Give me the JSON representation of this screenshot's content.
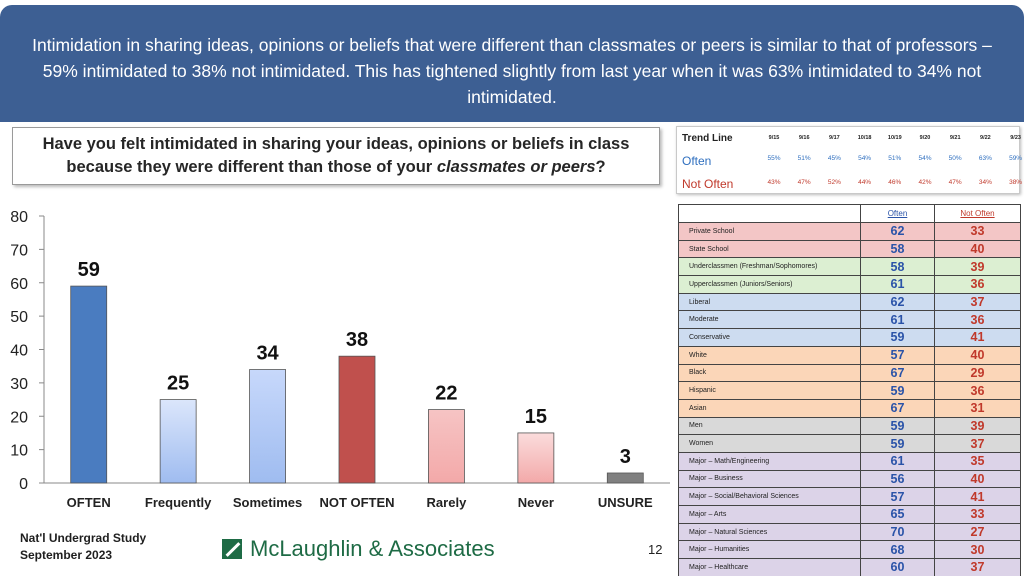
{
  "header": {
    "text": "Intimidation in sharing ideas, opinions or beliefs that were different than classmates or peers is similar to that of professors – 59% intimidated to 38% not intimidated. This has tightened slightly from last year when it was 63% intimidated to 34% not intimidated."
  },
  "question": {
    "part1": "Have you felt intimidated in sharing your ideas, opinions or beliefs in class because they were different than those of your ",
    "emphasis": "classmates or peers",
    "part2": "?"
  },
  "trend": {
    "title": "Trend Line",
    "often_label": "Often",
    "not_often_label": "Not Often",
    "years": [
      "9/15",
      "9/16",
      "9/17",
      "10/18",
      "10/19",
      "9/20",
      "9/21",
      "9/22",
      "9/23"
    ],
    "often": [
      "55%",
      "51%",
      "45%",
      "54%",
      "51%",
      "54%",
      "50%",
      "63%",
      "59%"
    ],
    "not_often": [
      "43%",
      "47%",
      "52%",
      "44%",
      "46%",
      "42%",
      "47%",
      "34%",
      "38%"
    ]
  },
  "chart_data": {
    "type": "bar",
    "categories": [
      "OFTEN",
      "Frequently",
      "Sometimes",
      "NOT OFTEN",
      "Rarely",
      "Never",
      "UNSURE"
    ],
    "values": [
      59,
      25,
      34,
      38,
      22,
      15,
      3
    ],
    "ylim": [
      0,
      80
    ],
    "yticks": [
      0,
      10,
      20,
      30,
      40,
      50,
      60,
      70,
      80
    ],
    "grid": false,
    "colors": [
      "#4a7cc0",
      "#dbe6fb",
      "#c7d8fb",
      "#c0504d",
      "#f6c4c4",
      "#fadcdc",
      "#808080"
    ]
  },
  "demographics": {
    "col_often": "Often",
    "col_not_often": "Not Often",
    "rows": [
      {
        "label": "Private School",
        "often": "62",
        "not_often": "33",
        "color": "#f3c6c6"
      },
      {
        "label": "State School",
        "often": "58",
        "not_often": "40",
        "color": "#f3c6c6"
      },
      {
        "label": "Underclassmen (Freshman/Sophomores)",
        "often": "58",
        "not_often": "39",
        "color": "#dcefd2"
      },
      {
        "label": "Upperclassmen (Juniors/Seniors)",
        "often": "61",
        "not_often": "36",
        "color": "#dcefd2"
      },
      {
        "label": "Liberal",
        "often": "62",
        "not_often": "37",
        "color": "#cddcf0"
      },
      {
        "label": "Moderate",
        "often": "61",
        "not_often": "36",
        "color": "#cddcf0"
      },
      {
        "label": "Conservative",
        "often": "59",
        "not_often": "41",
        "color": "#cddcf0"
      },
      {
        "label": "White",
        "often": "57",
        "not_often": "40",
        "color": "#fbd6b8"
      },
      {
        "label": "Black",
        "often": "67",
        "not_often": "29",
        "color": "#fbd6b8"
      },
      {
        "label": "Hispanic",
        "often": "59",
        "not_often": "36",
        "color": "#fbd6b8"
      },
      {
        "label": "Asian",
        "often": "67",
        "not_often": "31",
        "color": "#fbd6b8"
      },
      {
        "label": "Men",
        "often": "59",
        "not_often": "39",
        "color": "#d9d9d9"
      },
      {
        "label": "Women",
        "often": "59",
        "not_often": "37",
        "color": "#d9d9d9"
      },
      {
        "label": "Major – Math/Engineering",
        "often": "61",
        "not_often": "35",
        "color": "#dcd3e8"
      },
      {
        "label": "Major – Business",
        "often": "56",
        "not_often": "40",
        "color": "#dcd3e8"
      },
      {
        "label": "Major – Social/Behavioral Sciences",
        "often": "57",
        "not_often": "41",
        "color": "#dcd3e8"
      },
      {
        "label": "Major – Arts",
        "often": "65",
        "not_often": "33",
        "color": "#dcd3e8"
      },
      {
        "label": "Major – Natural Sciences",
        "often": "70",
        "not_often": "27",
        "color": "#dcd3e8"
      },
      {
        "label": "Major – Humanities",
        "often": "68",
        "not_often": "30",
        "color": "#dcd3e8"
      },
      {
        "label": "Major – Healthcare",
        "often": "60",
        "not_often": "37",
        "color": "#dcd3e8"
      }
    ]
  },
  "footer": {
    "line1": "Nat'l Undergrad Study",
    "line2": "September 2023",
    "logo_text": "McLaughlin & Associates",
    "page_number": "12"
  }
}
